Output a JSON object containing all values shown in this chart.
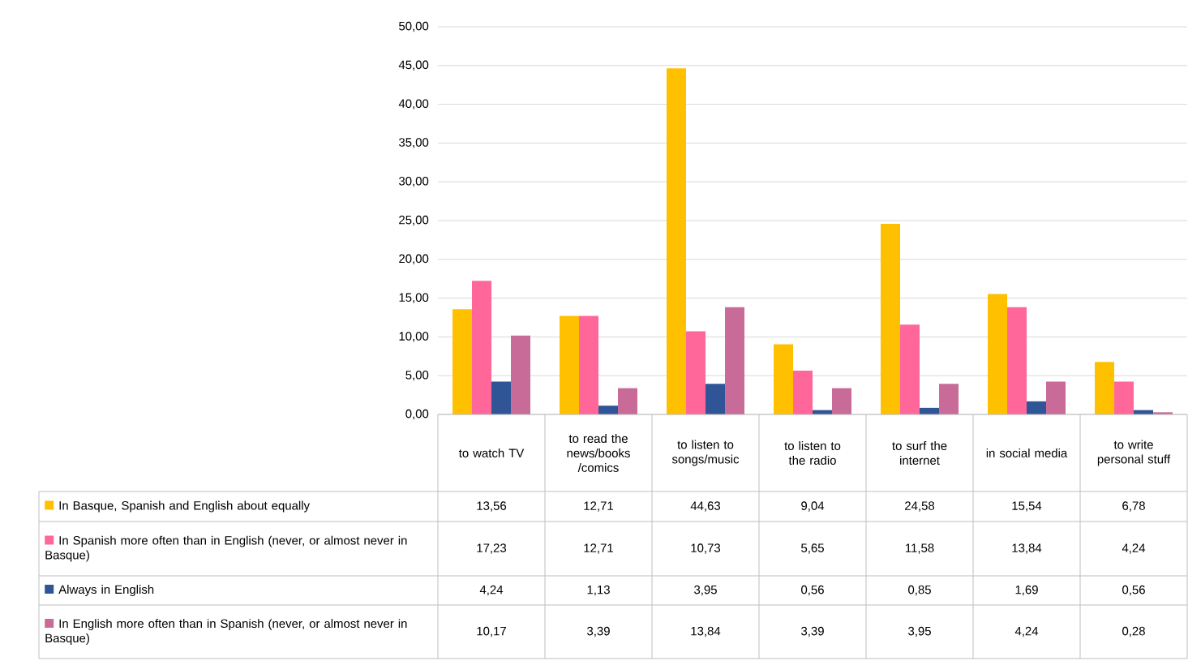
{
  "chart_data": {
    "type": "bar",
    "categories": [
      "to watch TV",
      "to read the news/books /comics",
      "to listen to songs/music",
      "to listen to the radio",
      "to surf the internet",
      "in social media",
      "to write personal stuff"
    ],
    "series": [
      {
        "name": "In Basque, Spanish and English about equally",
        "color": "#ffc000",
        "values": [
          13.56,
          12.71,
          44.63,
          9.04,
          24.58,
          15.54,
          6.78
        ],
        "value_labels": [
          "13,56",
          "12,71",
          "44,63",
          "9,04",
          "24,58",
          "15,54",
          "6,78"
        ]
      },
      {
        "name": "In Spanish more often than in English (never, or almost never in Basque)",
        "color": "#ff6699",
        "values": [
          17.23,
          12.71,
          10.73,
          5.65,
          11.58,
          13.84,
          4.24
        ],
        "value_labels": [
          "17,23",
          "12,71",
          "10,73",
          "5,65",
          "11,58",
          "13,84",
          "4,24"
        ]
      },
      {
        "name": "Always in English",
        "color": "#2f5597",
        "values": [
          4.24,
          1.13,
          3.95,
          0.56,
          0.85,
          1.69,
          0.56
        ],
        "value_labels": [
          "4,24",
          "1,13",
          "3,95",
          "0,56",
          "0,85",
          "1,69",
          "0,56"
        ]
      },
      {
        "name": "In English more often than in Spanish (never, or almost never in Basque)",
        "color": "#c86b98",
        "values": [
          10.17,
          3.39,
          13.84,
          3.39,
          3.95,
          4.24,
          0.28
        ],
        "value_labels": [
          "10,17",
          "3,39",
          "13,84",
          "3,39",
          "3,95",
          "4,24",
          "0,28"
        ]
      }
    ],
    "ylim": [
      0,
      50
    ],
    "yticks": [
      {
        "value": 0,
        "label": "0,00"
      },
      {
        "value": 5,
        "label": "5,00"
      },
      {
        "value": 10,
        "label": "10,00"
      },
      {
        "value": 15,
        "label": "15,00"
      },
      {
        "value": 20,
        "label": "20,00"
      },
      {
        "value": 25,
        "label": "25,00"
      },
      {
        "value": 30,
        "label": "30,00"
      },
      {
        "value": 35,
        "label": "35,00"
      },
      {
        "value": 40,
        "label": "40,00"
      },
      {
        "value": 45,
        "label": "45,00"
      },
      {
        "value": 50,
        "label": "50,00"
      }
    ],
    "grid": "y",
    "legend": "bottom"
  }
}
